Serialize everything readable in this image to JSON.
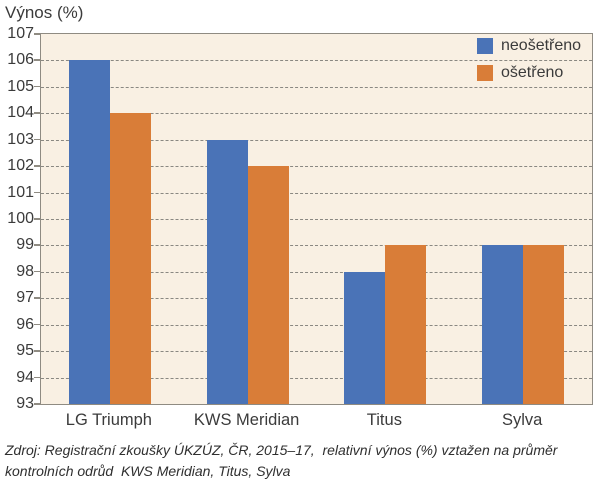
{
  "chart_data": {
    "type": "bar",
    "title": "Výnos (%)",
    "ylabel": "Výnos (%)",
    "xlabel": "",
    "categories": [
      "LG Triumph",
      "KWS Meridian",
      "Titus",
      "Sylva"
    ],
    "series": [
      {
        "name": "neošetřeno",
        "color": "#4a73b7",
        "values": [
          106,
          103,
          98,
          99
        ]
      },
      {
        "name": "ošetřeno",
        "color": "#d97d38",
        "values": [
          104,
          102,
          99,
          99
        ]
      }
    ],
    "ylim": [
      93,
      107
    ],
    "ytick_step": 1,
    "yticks": [
      93,
      94,
      95,
      96,
      97,
      98,
      99,
      100,
      101,
      102,
      103,
      104,
      105,
      106,
      107
    ],
    "grid": "horizontal-dashed",
    "legend_position": "inside-top-right",
    "colors": {
      "plot_background": "#f9f0e3",
      "grid_line": "#8a8882",
      "axis_line": "#8f8b82",
      "text": "#3b3b3b",
      "page_background": "#ffffff"
    }
  },
  "source_note": {
    "lines": [
      "Zdroj: Registrační zkoušky ÚKZÚZ, ČR, 2015–17,  relativní výnos (%) vztažen na průměr",
      "kontrolních odrůd  KWS Meridian, Titus, Sylva"
    ]
  }
}
